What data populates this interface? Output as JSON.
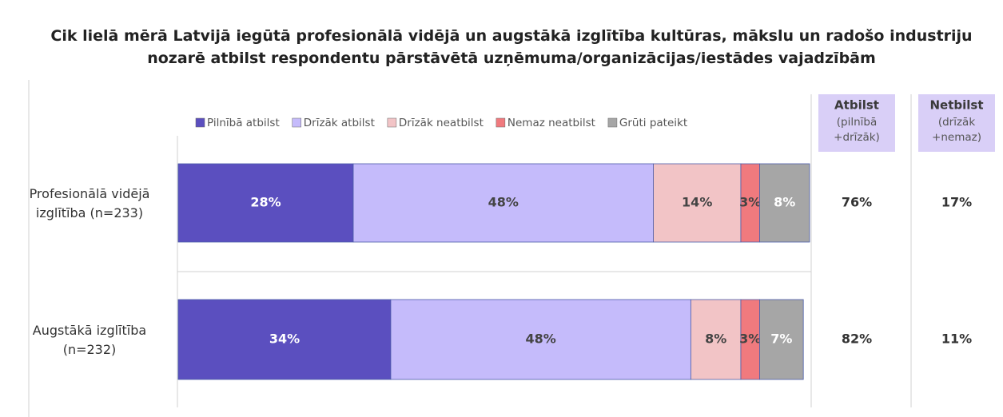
{
  "chart_data": {
    "type": "stacked_bar_horizontal",
    "title": "Cik lielā mērā Latvijā iegūtā profesionālā vidējā un augstākā izglītība kultūras, mākslu un radošo industriju\nnozarē atbilst respondentu pārstāvētā uzņēmuma/organizācijas/iestādes vajadzībām",
    "categories": [
      "Profesionālā vidējā\nizglītība (n=233)",
      "Augstākā izglītība\n(n=232)"
    ],
    "xlim": [
      0,
      101
    ],
    "legend": "top",
    "series": [
      {
        "name": "Pilnībā atbilst",
        "color": "#5b4fbf",
        "values": [
          28,
          34
        ],
        "value_labels": [
          "28%",
          "34%"
        ]
      },
      {
        "name": "Drīzāk atbilst",
        "color": "#c5bbfb",
        "values": [
          48,
          48
        ],
        "value_labels": [
          "48%",
          "48%"
        ]
      },
      {
        "name": "Drīzāk neatbilst",
        "color": "#f2c4c6",
        "values": [
          14,
          8
        ],
        "value_labels": [
          "14%",
          "8%"
        ]
      },
      {
        "name": "Nemaz neatbilst",
        "color": "#f07a7e",
        "values": [
          3,
          3
        ],
        "value_labels": [
          "3%",
          "3%"
        ]
      },
      {
        "name": "Grūti pateikt",
        "color": "#a6a6a6",
        "values": [
          8,
          7
        ],
        "value_labels": [
          "8%",
          "7%"
        ]
      }
    ],
    "summary_columns": [
      {
        "title": "Atbilst",
        "subtitle": "(pilnībā\n+drīzāk)",
        "values": [
          76,
          82
        ],
        "value_labels": [
          "76%",
          "82%"
        ]
      },
      {
        "title": "Netbilst",
        "subtitle": "(drīzāk\n+nemaz)",
        "values": [
          17,
          11
        ],
        "value_labels": [
          "17%",
          "11%"
        ]
      }
    ]
  }
}
